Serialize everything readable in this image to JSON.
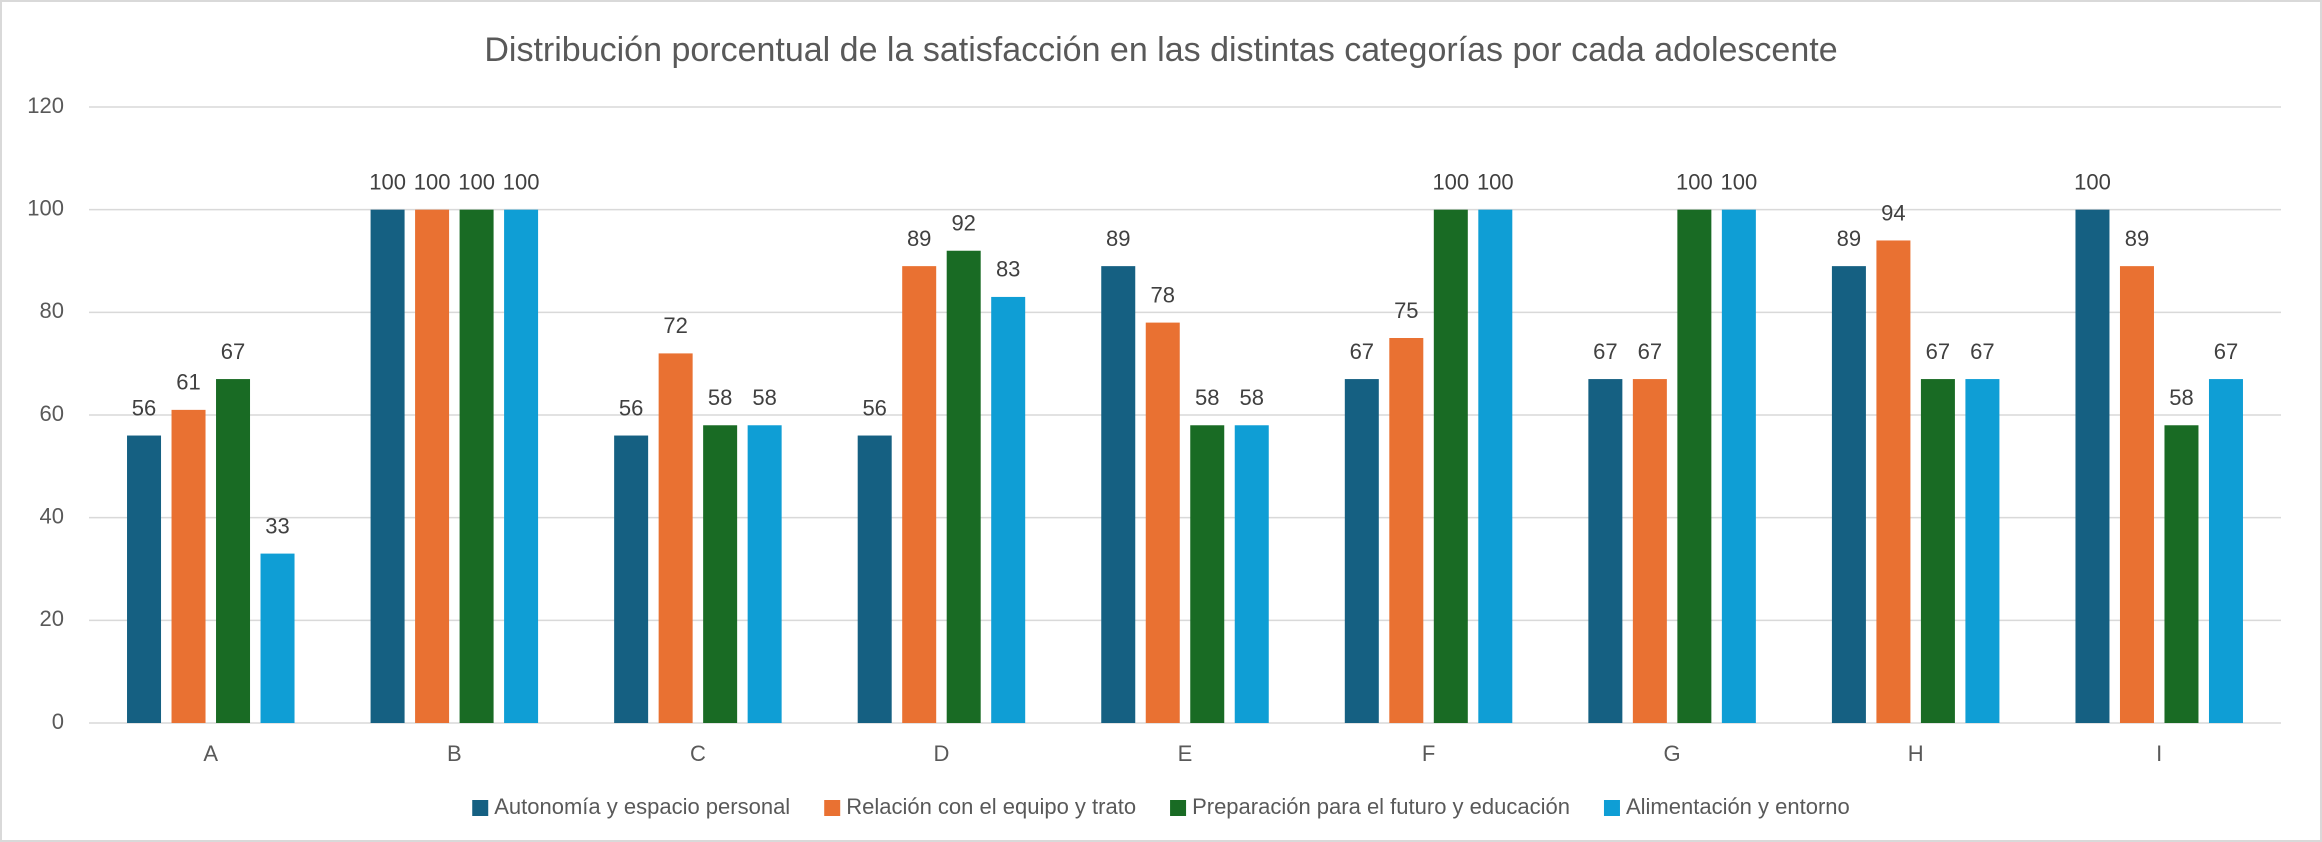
{
  "chart_data": {
    "type": "bar",
    "title": "Distribución porcentual de la satisfacción en las distintas categorías por cada adolescente",
    "categories": [
      "A",
      "B",
      "C",
      "D",
      "E",
      "F",
      "G",
      "H",
      "I"
    ],
    "series": [
      {
        "name": "Autonomía y espacio personal",
        "color": "#156082",
        "values": [
          56,
          100,
          56,
          56,
          89,
          67,
          67,
          89,
          100
        ]
      },
      {
        "name": "Relación con el equipo y trato",
        "color": "#e97132",
        "values": [
          61,
          100,
          72,
          89,
          78,
          75,
          67,
          94,
          89
        ]
      },
      {
        "name": "Preparación para el futuro y educación",
        "color": "#196b24",
        "values": [
          67,
          100,
          58,
          92,
          58,
          100,
          100,
          67,
          58
        ]
      },
      {
        "name": "Alimentación y entorno",
        "color": "#0f9ed5",
        "values": [
          33,
          100,
          58,
          83,
          58,
          100,
          100,
          67,
          67
        ]
      }
    ],
    "ylim": [
      0,
      120
    ],
    "yticks": [
      0,
      20,
      40,
      60,
      80,
      100,
      120
    ],
    "grid": true,
    "legend": "bottom"
  }
}
